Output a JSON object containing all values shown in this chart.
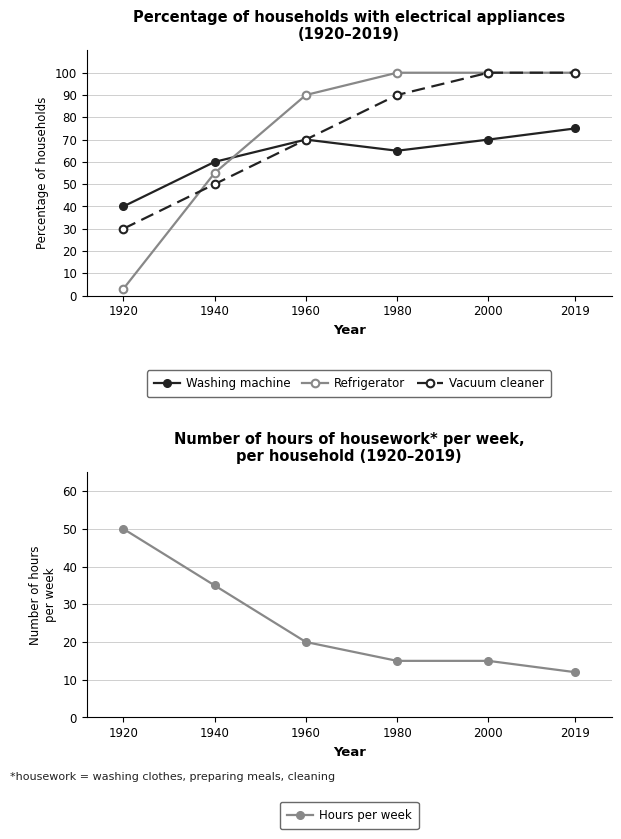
{
  "years": [
    1920,
    1940,
    1960,
    1980,
    2000,
    2019
  ],
  "washing_machine": [
    40,
    60,
    70,
    65,
    70,
    75
  ],
  "refrigerator": [
    3,
    55,
    90,
    100,
    100,
    100
  ],
  "vacuum_cleaner": [
    30,
    50,
    70,
    90,
    100,
    100
  ],
  "hours_per_week": [
    50,
    35,
    20,
    15,
    15,
    12
  ],
  "chart1_title": "Percentage of households with electrical appliances\n(1920–2019)",
  "chart1_ylabel": "Percentage of households",
  "chart1_xlabel": "Year",
  "chart1_ylim": [
    0,
    110
  ],
  "chart1_yticks": [
    0,
    10,
    20,
    30,
    40,
    50,
    60,
    70,
    80,
    90,
    100
  ],
  "chart2_title": "Number of hours of housework* per week,\nper household (1920–2019)",
  "chart2_ylabel": "Number of hours\nper week",
  "chart2_xlabel": "Year",
  "chart2_ylim": [
    0,
    65
  ],
  "chart2_yticks": [
    0,
    10,
    20,
    30,
    40,
    50,
    60
  ],
  "footnote": "*housework = washing clothes, preparing meals, cleaning",
  "line_color_dark": "#222222",
  "line_color_gray": "#888888",
  "background_color": "#ffffff"
}
